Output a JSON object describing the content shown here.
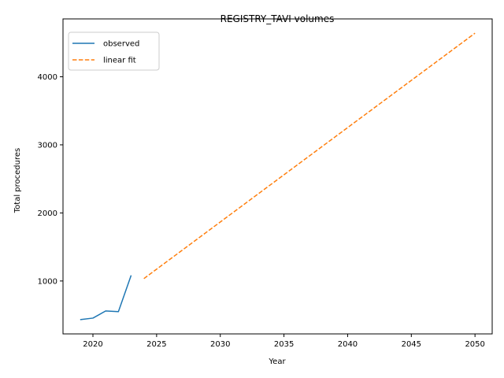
{
  "chart_data": {
    "type": "line",
    "title": "REGISTRY_TAVI volumes",
    "xlabel": "Year",
    "ylabel": "Total procedures",
    "xlim": [
      2017.65,
      2051.35
    ],
    "ylim": [
      223,
      4850
    ],
    "xticks": [
      2020,
      2025,
      2030,
      2035,
      2040,
      2045,
      2050
    ],
    "yticks": [
      1000,
      2000,
      3000,
      4000
    ],
    "grid": false,
    "legend": "top-left",
    "series": [
      {
        "name": "observed",
        "style": "solid",
        "color": "#1f77b4",
        "x": [
          2019,
          2020,
          2021,
          2022,
          2023
        ],
        "y": [
          433,
          455,
          560,
          550,
          1083
        ]
      },
      {
        "name": "linear fit",
        "style": "dashed",
        "color": "#ff7f0e",
        "x": [
          2024,
          2050
        ],
        "y": [
          1035,
          4640
        ]
      }
    ]
  }
}
